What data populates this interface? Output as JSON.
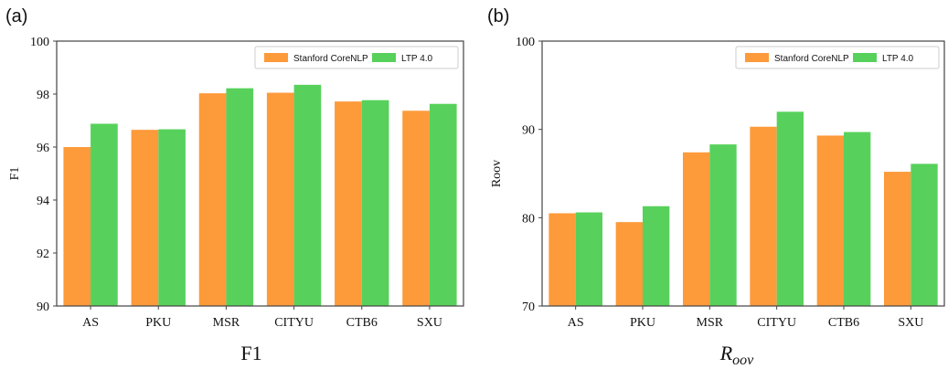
{
  "colors": {
    "stanford": "#FD9A3A",
    "ltp": "#57D15B",
    "axis": "#444444",
    "legend_border": "#cccccc"
  },
  "chart_data": [
    {
      "type": "bar",
      "panel_label": "(a)",
      "caption": "F1",
      "ylabel": "F1",
      "categories": [
        "AS",
        "PKU",
        "MSR",
        "CITYU",
        "CTB6",
        "SXU"
      ],
      "ylim": [
        90,
        100
      ],
      "yticks": [
        90,
        92,
        94,
        96,
        98,
        100
      ],
      "legend": "top-right",
      "grid": false,
      "series": [
        {
          "name": "Stanford CoreNLP",
          "values": [
            96.0,
            96.65,
            98.03,
            98.05,
            97.72,
            97.37
          ]
        },
        {
          "name": "LTP 4.0",
          "values": [
            96.88,
            96.67,
            98.22,
            98.35,
            97.77,
            97.63
          ]
        }
      ]
    },
    {
      "type": "bar",
      "panel_label": "(b)",
      "caption": "R",
      "caption_sub": "oov",
      "ylabel": "Roov",
      "categories": [
        "AS",
        "PKU",
        "MSR",
        "CITYU",
        "CTB6",
        "SXU"
      ],
      "ylim": [
        70,
        100
      ],
      "yticks": [
        70,
        80,
        90,
        100
      ],
      "legend": "top-right",
      "grid": false,
      "series": [
        {
          "name": "Stanford CoreNLP",
          "values": [
            80.5,
            79.5,
            87.4,
            90.3,
            89.3,
            85.2
          ]
        },
        {
          "name": "LTP 4.0",
          "values": [
            80.6,
            81.3,
            88.3,
            92.0,
            89.7,
            86.1
          ]
        }
      ]
    }
  ]
}
